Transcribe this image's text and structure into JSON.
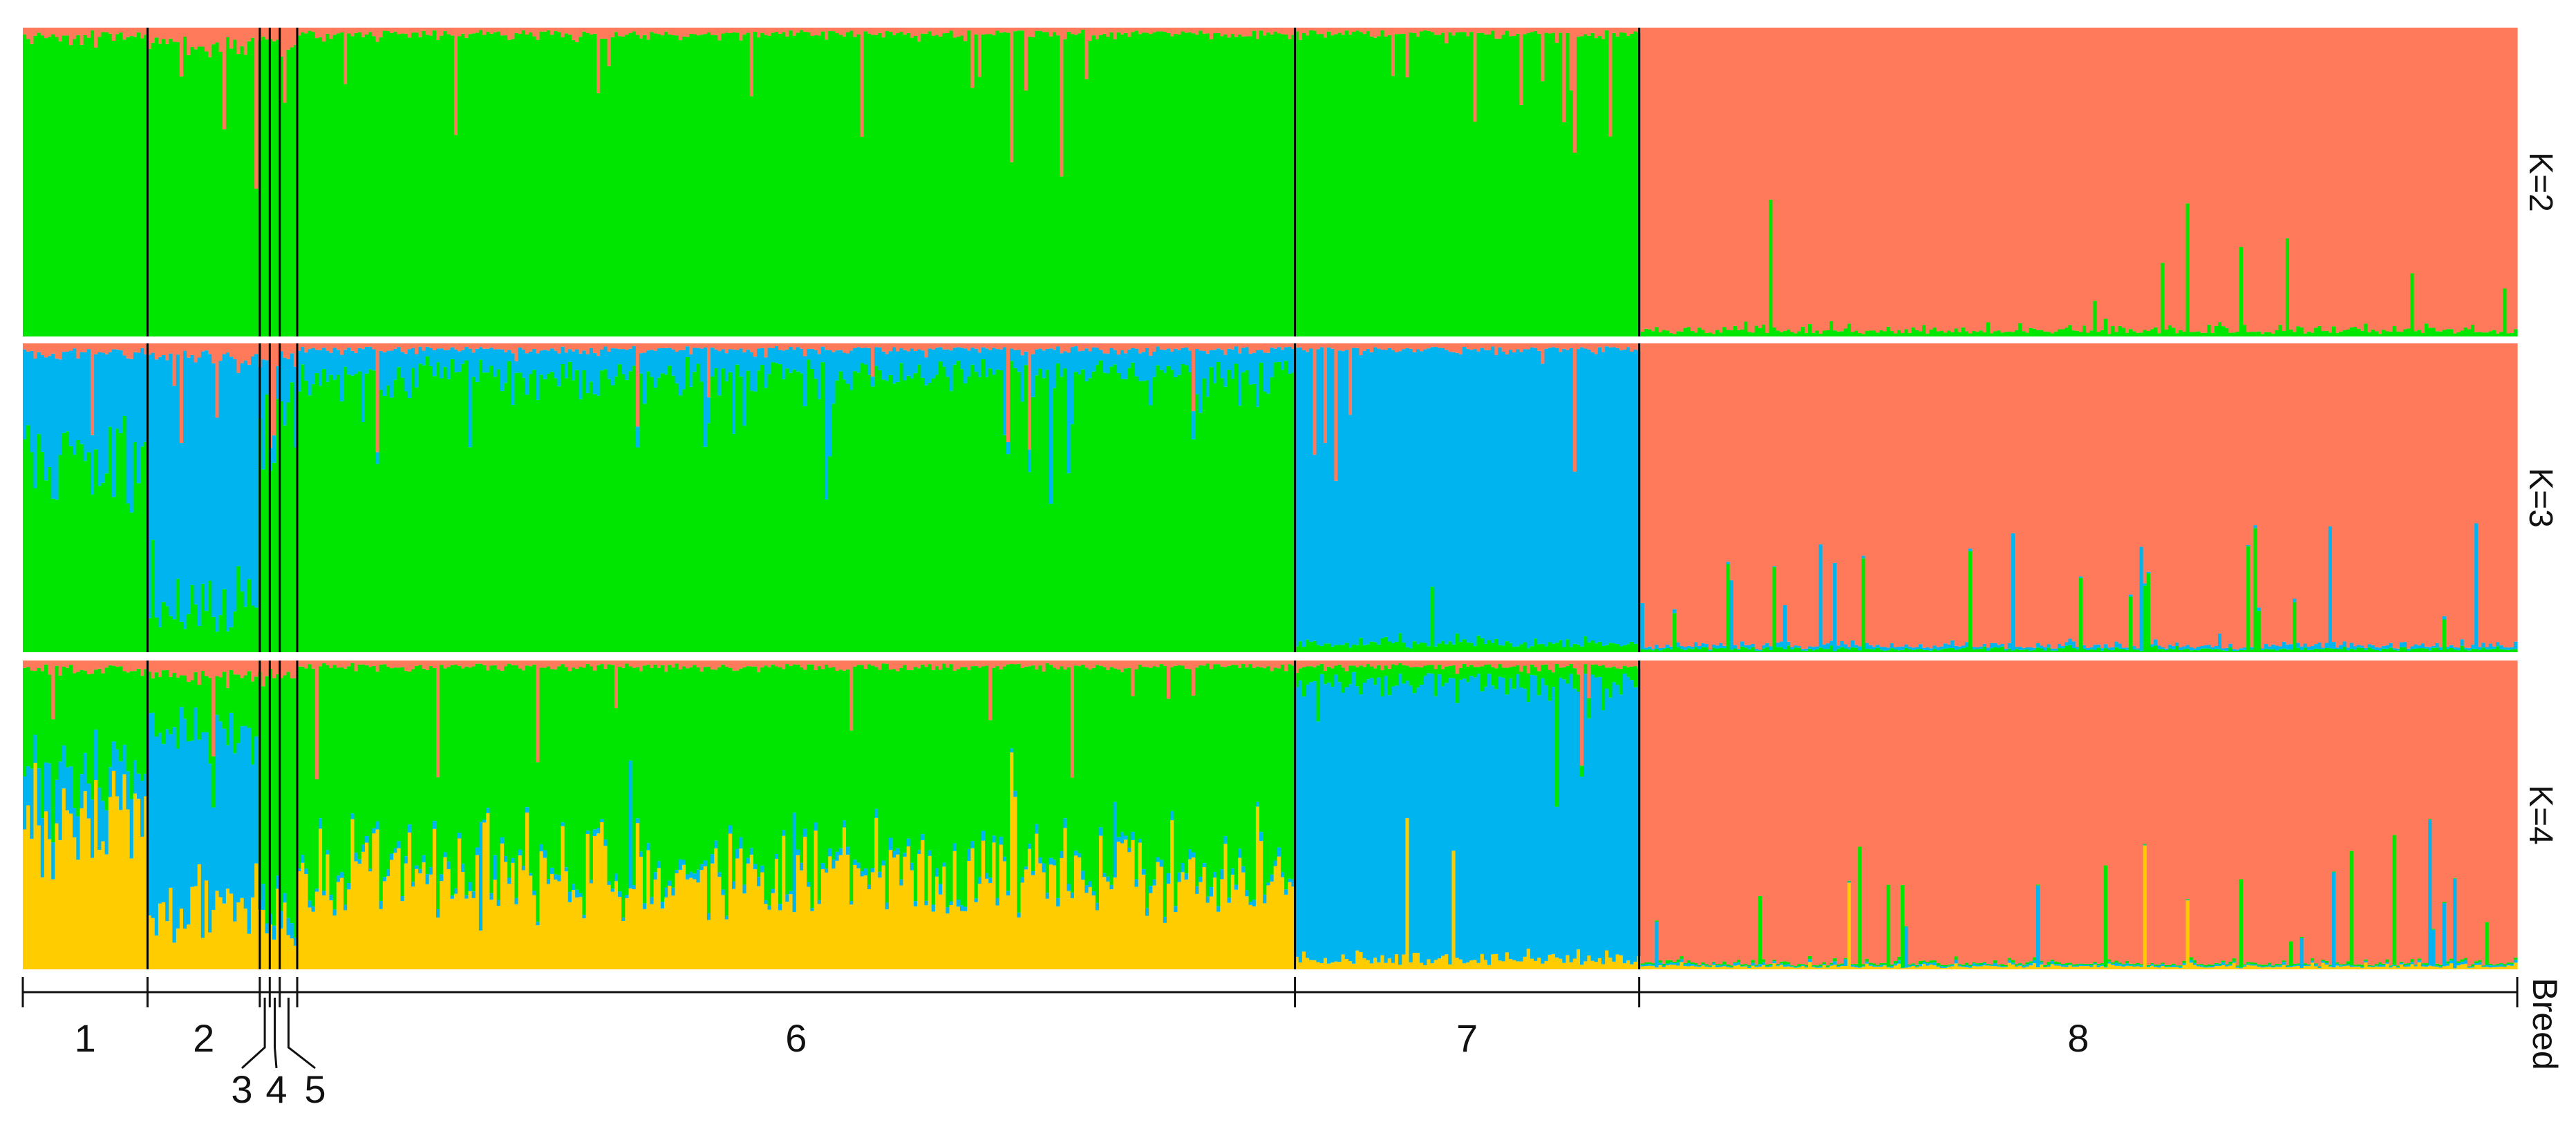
{
  "chart_data": {
    "type": "bar",
    "stacked": true,
    "panels": [
      {
        "label": "K=2",
        "components": [
          "green",
          "salmon"
        ]
      },
      {
        "label": "K=3",
        "components": [
          "green",
          "blue",
          "salmon"
        ]
      },
      {
        "label": "K=4",
        "components": [
          "yellow",
          "blue",
          "green",
          "salmon"
        ]
      }
    ],
    "breeds": [
      {
        "label": "1",
        "share": 0.05
      },
      {
        "label": "2",
        "share": 0.045
      },
      {
        "label": "3",
        "share": 0.004
      },
      {
        "label": "4",
        "share": 0.004
      },
      {
        "label": "5",
        "share": 0.007
      },
      {
        "label": "6",
        "share": 0.4
      },
      {
        "label": "7",
        "share": 0.138
      },
      {
        "label": "8",
        "share": 0.352
      }
    ],
    "breed_profiles": {
      "K=2": [
        {
          "green": 0.97,
          "salmon": 0.03
        },
        {
          "green": 0.95,
          "salmon": 0.05
        },
        {
          "green": 0.95,
          "salmon": 0.05
        },
        {
          "green": 0.95,
          "salmon": 0.05
        },
        {
          "green": 0.95,
          "salmon": 0.05
        },
        {
          "green": 0.98,
          "salmon": 0.02
        },
        {
          "green": 0.98,
          "salmon": 0.02
        },
        {
          "green": 0.02,
          "salmon": 0.98
        }
      ],
      "K=3": [
        {
          "blue": 0.35,
          "green": 0.62,
          "salmon": 0.03
        },
        {
          "blue": 0.8,
          "green": 0.15,
          "salmon": 0.05
        },
        {
          "blue": 0.1,
          "green": 0.85,
          "salmon": 0.05
        },
        {
          "blue": 0.1,
          "green": 0.85,
          "salmon": 0.05
        },
        {
          "blue": 0.2,
          "green": 0.75,
          "salmon": 0.05
        },
        {
          "blue": 0.08,
          "green": 0.9,
          "salmon": 0.02
        },
        {
          "blue": 0.95,
          "green": 0.03,
          "salmon": 0.02
        },
        {
          "blue": 0.01,
          "green": 0.01,
          "salmon": 0.98
        }
      ],
      "K=4": [
        {
          "yellow": 0.5,
          "blue": 0.15,
          "green": 0.32,
          "salmon": 0.03
        },
        {
          "yellow": 0.2,
          "blue": 0.55,
          "green": 0.2,
          "salmon": 0.05
        },
        {
          "yellow": 0.15,
          "blue": 0.05,
          "green": 0.75,
          "salmon": 0.05
        },
        {
          "yellow": 0.15,
          "blue": 0.05,
          "green": 0.75,
          "salmon": 0.05
        },
        {
          "yellow": 0.15,
          "blue": 0.05,
          "green": 0.75,
          "salmon": 0.05
        },
        {
          "yellow": 0.3,
          "blue": 0.02,
          "green": 0.66,
          "salmon": 0.02
        },
        {
          "yellow": 0.03,
          "blue": 0.9,
          "green": 0.05,
          "salmon": 0.02
        },
        {
          "yellow": 0.01,
          "blue": 0.005,
          "green": 0.005,
          "salmon": 0.98
        }
      ]
    },
    "ylim": [
      0,
      1
    ],
    "xlabel": "Breed",
    "grid": false,
    "legend": "none"
  },
  "colors": {
    "green": "#00e600",
    "salmon": "#ff7a5a",
    "blue": "#00b4f0",
    "yellow": "#ffcc00",
    "separator": "#000000"
  }
}
